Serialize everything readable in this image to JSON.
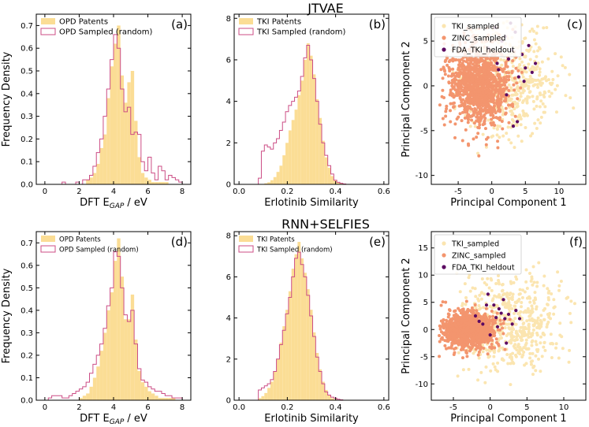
{
  "row_titles": [
    "JTVAE",
    "RNN+SELFIES"
  ],
  "colors": {
    "patents_fill": "#FBDD95",
    "sampled_edge": "#CC4D85",
    "tki_sampled": "#FBE5B0",
    "zinc_sampled": "#F3956E",
    "fda_heldout": "#5C0A62"
  },
  "chart_data": [
    {
      "type": "histogram",
      "panel": "(a)",
      "row": 0,
      "col": 0,
      "title": "",
      "xlabel": "DFT E_GAP / eV",
      "xlabel_main": "DFT E",
      "xlabel_sub": "GAP",
      "xlabel_unit": " / eV",
      "ylabel": "Frequency Density",
      "xlim": [
        -0.5,
        8.5
      ],
      "ylim": [
        0,
        0.75
      ],
      "xticks": [
        0,
        2,
        4,
        6,
        8
      ],
      "yticks": [
        0.0,
        0.1,
        0.2,
        0.3,
        0.4,
        0.5,
        0.6,
        0.7
      ],
      "tick_fmt": 1,
      "legend": [
        "OPD Patents",
        "OPD Sampled (random)"
      ],
      "legend_size": "large",
      "bin_start": 1.0,
      "bin_width": 0.2,
      "series": [
        {
          "name": "OPD Patents",
          "style": "filled",
          "values": [
            0,
            0,
            0,
            0,
            0,
            0,
            0,
            0.02,
            0.03,
            0.05,
            0.09,
            0.16,
            0.22,
            0.38,
            0.52,
            0.62,
            0.7,
            0.48,
            0.36,
            0.45,
            0.5,
            0.28,
            0.12,
            0.05,
            0.03,
            0.02,
            0.01,
            0.01,
            0.01,
            0.01,
            0.01,
            0,
            0,
            0,
            0
          ]
        },
        {
          "name": "OPD Sampled (random)",
          "style": "step",
          "values": [
            0.01,
            0,
            0,
            0,
            0.01,
            0,
            0.02,
            0.02,
            0.04,
            0.08,
            0.14,
            0.2,
            0.3,
            0.42,
            0.55,
            0.66,
            0.6,
            0.42,
            0.32,
            0.34,
            0.22,
            0.23,
            0.22,
            0.1,
            0.06,
            0.12,
            0.05,
            0.02,
            0.08,
            0.06,
            0.02,
            0.04,
            0.03,
            0.02,
            0.01
          ]
        }
      ]
    },
    {
      "type": "histogram",
      "panel": "(b)",
      "row": 0,
      "col": 1,
      "title": "",
      "xlabel": "Erlotinib Similarity",
      "ylabel": "",
      "xlim": [
        -0.02,
        0.62
      ],
      "ylim": [
        0,
        8.2
      ],
      "xticks": [
        0.0,
        0.2,
        0.4,
        0.6
      ],
      "yticks": [
        0,
        2,
        4,
        6,
        8
      ],
      "tick_fmt_x": 1,
      "tick_fmt_y": 0,
      "legend": [
        "TKI Patents",
        "TKI Sampled (random)"
      ],
      "legend_size": "large",
      "bin_start": 0.08,
      "bin_width": 0.0125,
      "series": [
        {
          "name": "TKI Patents",
          "style": "filled",
          "values": [
            0,
            0,
            0.05,
            0.1,
            0.2,
            0.35,
            0.6,
            0.9,
            1.4,
            2.0,
            2.6,
            3.1,
            3.6,
            4.3,
            5.0,
            6.0,
            6.8,
            6.2,
            5.3,
            4.1,
            3.2,
            2.1,
            1.3,
            0.8,
            0.4,
            0.2,
            0.1,
            0.05,
            0.02,
            0
          ]
        },
        {
          "name": "TKI Sampled (random)",
          "style": "step",
          "values": [
            0.3,
            1.6,
            1.9,
            1.8,
            1.7,
            2.0,
            2.2,
            2.6,
            3.0,
            3.5,
            3.8,
            4.0,
            4.2,
            4.5,
            5.2,
            6.1,
            6.7,
            6.0,
            5.1,
            4.0,
            2.9,
            2.0,
            1.4,
            0.9,
            0.5,
            0.2,
            0.1,
            0.05,
            0.02,
            0
          ]
        }
      ]
    },
    {
      "type": "scatter",
      "panel": "(c)",
      "row": 0,
      "col": 2,
      "title": "",
      "xlabel": "Principal Component 1",
      "ylabel": "Principal Component 2",
      "xlim": [
        -9,
        14
      ],
      "ylim": [
        -11,
        8
      ],
      "xticks": [
        -5,
        0,
        5,
        10
      ],
      "yticks": [
        -10,
        -5,
        0,
        5
      ],
      "legend": [
        "TKI_sampled",
        "ZINC_sampled",
        "FDA_TKI_heldout"
      ],
      "clouds": [
        {
          "name": "TKI_sampled",
          "center": [
            2.5,
            0.5
          ],
          "spread": [
            3.8,
            3.0
          ],
          "count": 520,
          "x_range": [
            -6,
            13
          ],
          "y_range": [
            -9,
            7.5
          ]
        },
        {
          "name": "ZINC_sampled",
          "center": [
            -2.0,
            0.0
          ],
          "spread": [
            2.3,
            2.3
          ],
          "count": 1150,
          "x_range": [
            -8,
            5
          ],
          "y_range": [
            -10,
            8
          ]
        }
      ],
      "points": {
        "name": "FDA_TKI_heldout",
        "x": [
          0.5,
          2.0,
          3.0,
          4.5,
          5.0,
          6.0,
          1.5,
          2.5,
          4.0,
          3.5,
          5.5,
          0.8,
          2.2,
          4.8,
          6.5,
          3.8,
          1.0,
          2.8,
          -0.5,
          3.2
        ],
        "y": [
          6.5,
          5.5,
          4.0,
          3.5,
          2.0,
          1.5,
          5.0,
          3.0,
          1.0,
          6.0,
          4.5,
          2.5,
          -1.0,
          0.5,
          2.5,
          -4.0,
          1.8,
          7.0,
          4.2,
          -4.5
        ]
      }
    },
    {
      "type": "histogram",
      "panel": "(d)",
      "row": 1,
      "col": 0,
      "title": "",
      "xlabel": "DFT E_GAP / eV",
      "xlabel_main": "DFT E",
      "xlabel_sub": "GAP",
      "xlabel_unit": " / eV",
      "ylabel": "Frequency Density",
      "xlim": [
        -0.5,
        8.5
      ],
      "ylim": [
        0,
        0.75
      ],
      "xticks": [
        0,
        2,
        4,
        6,
        8
      ],
      "yticks": [
        0.0,
        0.1,
        0.2,
        0.3,
        0.4,
        0.5,
        0.6,
        0.7
      ],
      "tick_fmt": 1,
      "legend": [
        "OPD Patents",
        "OPD Sampled (random)"
      ],
      "legend_size": "small",
      "bin_start": 0.0,
      "bin_width": 0.2,
      "series": [
        {
          "name": "OPD Patents",
          "style": "filled",
          "values": [
            0,
            0,
            0,
            0,
            0,
            0,
            0,
            0,
            0,
            0,
            0.01,
            0.02,
            0.03,
            0.06,
            0.1,
            0.15,
            0.22,
            0.3,
            0.4,
            0.48,
            0.62,
            0.72,
            0.55,
            0.36,
            0.36,
            0.47,
            0.27,
            0.13,
            0.08,
            0.06,
            0.04,
            0.03,
            0.02,
            0.01,
            0.01,
            0.01,
            0.01,
            0.01,
            0,
            0,
            0
          ]
        },
        {
          "name": "OPD Sampled (random)",
          "style": "step",
          "values": [
            0,
            0.01,
            0.02,
            0.02,
            0.02,
            0.01,
            0.01,
            0.02,
            0.03,
            0.04,
            0.05,
            0.06,
            0.08,
            0.12,
            0.16,
            0.2,
            0.25,
            0.32,
            0.42,
            0.5,
            0.66,
            0.64,
            0.5,
            0.38,
            0.35,
            0.4,
            0.25,
            0.14,
            0.09,
            0.08,
            0.06,
            0.05,
            0.04,
            0.04,
            0.03,
            0.02,
            0.02,
            0.01,
            0.01,
            0.01,
            0
          ]
        }
      ]
    },
    {
      "type": "histogram",
      "panel": "(e)",
      "row": 1,
      "col": 1,
      "title": "",
      "xlabel": "Erlotinib Similarity",
      "ylabel": "",
      "xlim": [
        -0.02,
        0.62
      ],
      "ylim": [
        0,
        8.2
      ],
      "xticks": [
        0.0,
        0.2,
        0.4,
        0.6
      ],
      "yticks": [
        0,
        2,
        4,
        6,
        8
      ],
      "tick_fmt_x": 1,
      "tick_fmt_y": 0,
      "legend": [
        "TKI Patents",
        "TKI Sampled (random)"
      ],
      "legend_size": "small",
      "bin_start": 0.08,
      "bin_width": 0.0125,
      "series": [
        {
          "name": "TKI Patents",
          "style": "filled",
          "values": [
            0.1,
            0.2,
            0.35,
            0.6,
            0.9,
            1.4,
            2.0,
            2.8,
            3.6,
            4.4,
            5.3,
            6.4,
            7.1,
            7.7,
            6.9,
            6.2,
            5.4,
            4.4,
            3.3,
            2.3,
            1.5,
            0.9,
            0.5,
            0.25,
            0.1,
            0.05,
            0.02,
            0,
            0,
            0
          ]
        },
        {
          "name": "TKI Sampled (random)",
          "style": "step",
          "values": [
            0.5,
            0.6,
            0.7,
            0.8,
            1.0,
            1.4,
            2.0,
            2.7,
            3.4,
            4.2,
            5.0,
            6.0,
            6.9,
            7.2,
            6.6,
            6.0,
            5.1,
            4.1,
            3.1,
            2.1,
            1.4,
            0.8,
            0.4,
            0.25,
            0.15,
            0.1,
            0.05,
            0.02,
            0,
            0
          ]
        }
      ]
    },
    {
      "type": "scatter",
      "panel": "(f)",
      "row": 1,
      "col": 2,
      "title": "",
      "xlabel": "Principal Component 1",
      "ylabel": "Principal Component 2",
      "xlim": [
        -8,
        13
      ],
      "ylim": [
        -13,
        18
      ],
      "xticks": [
        -5,
        0,
        5,
        10
      ],
      "yticks": [
        -10,
        -5,
        0,
        5,
        10,
        15
      ],
      "legend": [
        "TKI_sampled",
        "ZINC_sampled",
        "FDA_TKI_heldout"
      ],
      "clouds": [
        {
          "name": "TKI_sampled",
          "center": [
            2.5,
            1.0
          ],
          "spread": [
            3.5,
            4.5
          ],
          "count": 600,
          "x_range": [
            -5,
            12
          ],
          "y_range": [
            -12,
            17
          ]
        },
        {
          "name": "ZINC_sampled",
          "center": [
            -3.0,
            0.0
          ],
          "spread": [
            1.8,
            1.6
          ],
          "count": 1150,
          "x_range": [
            -7,
            3
          ],
          "y_range": [
            -6,
            6
          ]
        }
      ],
      "points": {
        "name": "FDA_TKI_heldout",
        "x": [
          -2.0,
          -1.5,
          0.5,
          1.5,
          2.0,
          3.0,
          1.0,
          -0.5,
          2.5,
          0.0,
          1.8,
          3.5,
          -1.0,
          0.8,
          2.2,
          4.0,
          1.2,
          -0.3
        ],
        "y": [
          2.5,
          1.5,
          4.5,
          3.0,
          2.0,
          1.0,
          0.5,
          4.5,
          2.8,
          -1.0,
          5.5,
          3.5,
          1.0,
          2.2,
          -2.5,
          2.0,
          3.8,
          6.5
        ]
      }
    }
  ]
}
